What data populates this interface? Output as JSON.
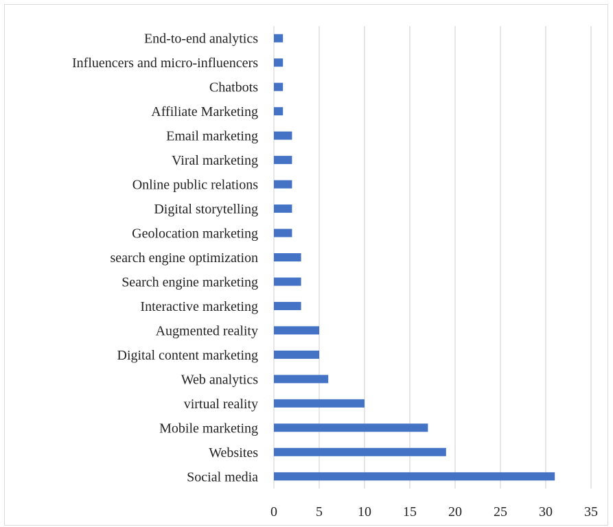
{
  "chart_data": {
    "type": "bar",
    "orientation": "horizontal",
    "categories": [
      "Social media",
      "Websites",
      "Mobile marketing",
      "virtual reality",
      "Web analytics",
      "Digital content marketing",
      "Augmented reality",
      "Interactive marketing",
      "Search engine marketing",
      "search engine optimization",
      "Geolocation marketing",
      "Digital storytelling",
      "Online public relations",
      "Viral marketing",
      "Email marketing",
      "Affiliate Marketing",
      "Chatbots",
      "Influencers and micro-influencers",
      "End-to-end analytics"
    ],
    "values": [
      31,
      19,
      17,
      10,
      6,
      5,
      5,
      3,
      3,
      3,
      2,
      2,
      2,
      2,
      2,
      1,
      1,
      1,
      1
    ],
    "xlim": [
      0,
      35
    ],
    "xticks": [
      "0",
      "5",
      "10",
      "15",
      "20",
      "25",
      "30",
      "35"
    ],
    "grid": "vertical",
    "legend": "none",
    "bar_color": "#4472C4",
    "grid_color": "#d9d9d9",
    "title": "",
    "xlabel": "",
    "ylabel": ""
  }
}
